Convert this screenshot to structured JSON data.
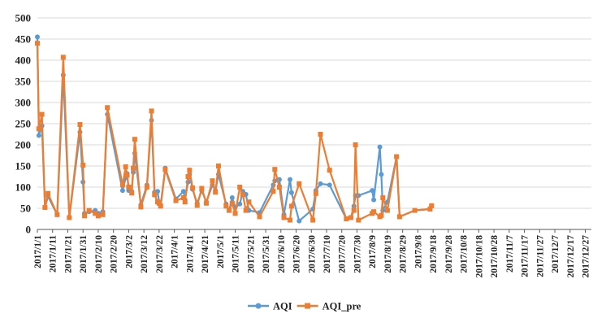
{
  "chart_data": {
    "type": "line",
    "title": "",
    "xlabel": "",
    "ylabel": "",
    "ylim": [
      0,
      500
    ],
    "yticks": [
      "0",
      "50",
      "100",
      "150",
      "200",
      "250",
      "300",
      "350",
      "400",
      "450",
      "500"
    ],
    "xlim": [
      "2017/1/1",
      "2017/12/31"
    ],
    "xticks": [
      "2017/1/1",
      "2017/1/11",
      "2017/1/21",
      "2017/1/31",
      "2017/2/10",
      "2017/2/20",
      "2017/3/2",
      "2017/3/12",
      "2017/3/22",
      "2017/4/1",
      "2017/4/11",
      "2017/4/21",
      "2017/5/1",
      "2017/5/11",
      "2017/5/21",
      "2017/5/31",
      "2017/6/10",
      "2017/6/20",
      "2017/6/30",
      "2017/7/10",
      "2017/7/20",
      "2017/7/30",
      "2017/8/9",
      "2017/8/19",
      "2017/8/29",
      "2017/9/8",
      "2017/9/18",
      "2017/9/28",
      "2017/10/8",
      "2017/10/18",
      "2017/10/28",
      "2017/11/7",
      "2017/11/17",
      "2017/11/27",
      "2017/12/7",
      "2017/12/17",
      "2017/12/27"
    ],
    "grid": "horizontal",
    "legend_position": "bottom",
    "series": [
      {
        "name": "AQI",
        "color": "#5B9BD5",
        "marker": "circle",
        "points": [
          [
            "2017/1/1",
            455
          ],
          [
            "2017/1/2",
            222
          ],
          [
            "2017/1/4",
            245
          ],
          [
            "2017/1/6",
            52
          ],
          [
            "2017/1/8",
            78
          ],
          [
            "2017/1/14",
            35
          ],
          [
            "2017/1/18",
            365
          ],
          [
            "2017/1/22",
            28
          ],
          [
            "2017/1/29",
            230
          ],
          [
            "2017/1/31",
            112
          ],
          [
            "2017/2/1",
            38
          ],
          [
            "2017/2/4",
            42
          ],
          [
            "2017/2/8",
            45
          ],
          [
            "2017/2/10",
            38
          ],
          [
            "2017/2/13",
            42
          ],
          [
            "2017/2/16",
            272
          ],
          [
            "2017/2/26",
            92
          ],
          [
            "2017/2/28",
            122
          ],
          [
            "2017/3/1",
            132
          ],
          [
            "2017/3/2",
            92
          ],
          [
            "2017/3/4",
            90
          ],
          [
            "2017/3/5",
            135
          ],
          [
            "2017/3/6",
            180
          ],
          [
            "2017/3/10",
            58
          ],
          [
            "2017/3/14",
            105
          ],
          [
            "2017/3/17",
            258
          ],
          [
            "2017/3/19",
            88
          ],
          [
            "2017/3/21",
            90
          ],
          [
            "2017/3/22",
            65
          ],
          [
            "2017/3/23",
            58
          ],
          [
            "2017/3/26",
            145
          ],
          [
            "2017/4/2",
            72
          ],
          [
            "2017/4/7",
            90
          ],
          [
            "2017/4/8",
            70
          ],
          [
            "2017/4/10",
            112
          ],
          [
            "2017/4/11",
            130
          ],
          [
            "2017/4/13",
            95
          ],
          [
            "2017/4/16",
            62
          ],
          [
            "2017/4/19",
            92
          ],
          [
            "2017/4/22",
            65
          ],
          [
            "2017/4/26",
            105
          ],
          [
            "2017/4/28",
            92
          ],
          [
            "2017/4/30",
            130
          ],
          [
            "2017/5/5",
            60
          ],
          [
            "2017/5/7",
            45
          ],
          [
            "2017/5/9",
            75
          ],
          [
            "2017/5/11",
            52
          ],
          [
            "2017/5/14",
            60
          ],
          [
            "2017/5/16",
            90
          ],
          [
            "2017/5/18",
            83
          ],
          [
            "2017/5/20",
            45
          ],
          [
            "2017/5/27",
            40
          ],
          [
            "2017/6/5",
            105
          ],
          [
            "2017/6/6",
            115
          ],
          [
            "2017/6/9",
            118
          ],
          [
            "2017/6/12",
            35
          ],
          [
            "2017/6/16",
            118
          ],
          [
            "2017/6/17",
            87
          ],
          [
            "2017/6/22",
            20
          ],
          [
            "2017/7/1",
            48
          ],
          [
            "2017/7/3",
            92
          ],
          [
            "2017/7/6",
            108
          ],
          [
            "2017/7/12",
            105
          ],
          [
            "2017/7/23",
            25
          ],
          [
            "2017/7/26",
            28
          ],
          [
            "2017/7/28",
            55
          ],
          [
            "2017/7/29",
            80
          ],
          [
            "2017/7/31",
            80
          ],
          [
            "2017/8/9",
            92
          ],
          [
            "2017/8/10",
            70
          ],
          [
            "2017/8/14",
            195
          ],
          [
            "2017/8/15",
            130
          ],
          [
            "2017/8/16",
            45
          ],
          [
            "2017/8/19",
            65
          ],
          [
            "2017/8/25",
            172
          ],
          [
            "2017/8/27",
            30
          ],
          [
            "2017/9/6",
            45
          ],
          [
            "2017/9/16",
            48
          ],
          [
            "2017/9/17",
            56
          ]
        ]
      },
      {
        "name": "AQI_pre",
        "color": "#ED7D31",
        "marker": "square",
        "points": [
          [
            "2017/1/1",
            440
          ],
          [
            "2017/1/2",
            238
          ],
          [
            "2017/1/4",
            272
          ],
          [
            "2017/1/6",
            52
          ],
          [
            "2017/1/8",
            85
          ],
          [
            "2017/1/14",
            35
          ],
          [
            "2017/1/18",
            407
          ],
          [
            "2017/1/22",
            28
          ],
          [
            "2017/1/29",
            248
          ],
          [
            "2017/1/31",
            152
          ],
          [
            "2017/2/1",
            32
          ],
          [
            "2017/2/4",
            45
          ],
          [
            "2017/2/8",
            38
          ],
          [
            "2017/2/10",
            32
          ],
          [
            "2017/2/13",
            35
          ],
          [
            "2017/2/16",
            288
          ],
          [
            "2017/2/26",
            105
          ],
          [
            "2017/2/28",
            148
          ],
          [
            "2017/3/1",
            128
          ],
          [
            "2017/3/2",
            100
          ],
          [
            "2017/3/4",
            86
          ],
          [
            "2017/3/5",
            145
          ],
          [
            "2017/3/6",
            213
          ],
          [
            "2017/3/10",
            53
          ],
          [
            "2017/3/14",
            100
          ],
          [
            "2017/3/17",
            280
          ],
          [
            "2017/3/19",
            82
          ],
          [
            "2017/3/21",
            65
          ],
          [
            "2017/3/22",
            62
          ],
          [
            "2017/3/23",
            55
          ],
          [
            "2017/3/26",
            142
          ],
          [
            "2017/4/2",
            68
          ],
          [
            "2017/4/7",
            75
          ],
          [
            "2017/4/8",
            65
          ],
          [
            "2017/4/10",
            125
          ],
          [
            "2017/4/11",
            140
          ],
          [
            "2017/4/13",
            98
          ],
          [
            "2017/4/16",
            57
          ],
          [
            "2017/4/19",
            97
          ],
          [
            "2017/4/22",
            62
          ],
          [
            "2017/4/26",
            115
          ],
          [
            "2017/4/28",
            88
          ],
          [
            "2017/4/30",
            150
          ],
          [
            "2017/5/5",
            55
          ],
          [
            "2017/5/7",
            45
          ],
          [
            "2017/5/9",
            62
          ],
          [
            "2017/5/11",
            38
          ],
          [
            "2017/5/14",
            100
          ],
          [
            "2017/5/16",
            82
          ],
          [
            "2017/5/18",
            45
          ],
          [
            "2017/5/20",
            65
          ],
          [
            "2017/5/27",
            30
          ],
          [
            "2017/6/5",
            90
          ],
          [
            "2017/6/6",
            142
          ],
          [
            "2017/6/9",
            100
          ],
          [
            "2017/6/12",
            28
          ],
          [
            "2017/6/16",
            22
          ],
          [
            "2017/6/17",
            55
          ],
          [
            "2017/6/22",
            108
          ],
          [
            "2017/7/1",
            22
          ],
          [
            "2017/7/3",
            85
          ],
          [
            "2017/7/6",
            225
          ],
          [
            "2017/7/12",
            140
          ],
          [
            "2017/7/23",
            25
          ],
          [
            "2017/7/26",
            28
          ],
          [
            "2017/7/28",
            45
          ],
          [
            "2017/7/29",
            200
          ],
          [
            "2017/7/31",
            22
          ],
          [
            "2017/8/9",
            38
          ],
          [
            "2017/8/10",
            42
          ],
          [
            "2017/8/14",
            30
          ],
          [
            "2017/8/15",
            33
          ],
          [
            "2017/8/16",
            75
          ],
          [
            "2017/8/19",
            45
          ],
          [
            "2017/8/25",
            172
          ],
          [
            "2017/8/27",
            30
          ],
          [
            "2017/9/6",
            45
          ],
          [
            "2017/9/16",
            48
          ],
          [
            "2017/9/17",
            56
          ]
        ]
      }
    ]
  }
}
